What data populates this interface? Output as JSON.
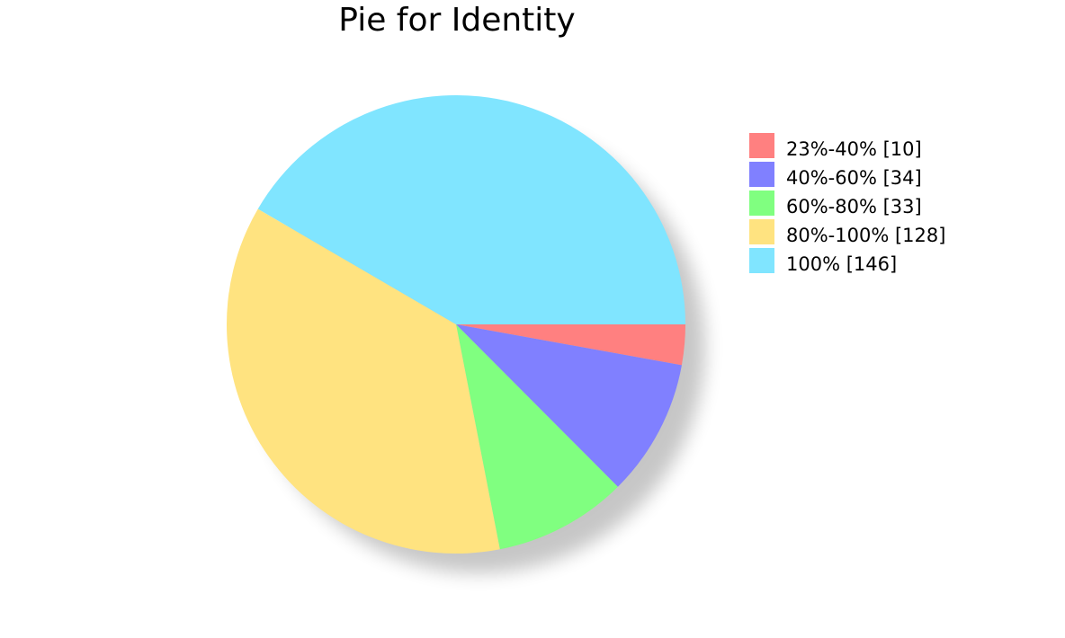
{
  "chart_data": {
    "type": "pie",
    "title": "Pie for Identity",
    "categories": [
      "23%-40%",
      "40%-60%",
      "60%-80%",
      "80%-100%",
      "100%"
    ],
    "values": [
      10,
      34,
      33,
      128,
      146
    ],
    "legend_labels": [
      "23%-40% [10]",
      "40%-60% [34]",
      "60%-80% [33]",
      "80%-100% [128]",
      "100% [146]"
    ],
    "colors": [
      "#ff8080",
      "#8080ff",
      "#80ff80",
      "#ffe380",
      "#80e5ff"
    ],
    "legend_position": "right",
    "start_angle": "3 o'clock",
    "direction": "clockwise"
  }
}
